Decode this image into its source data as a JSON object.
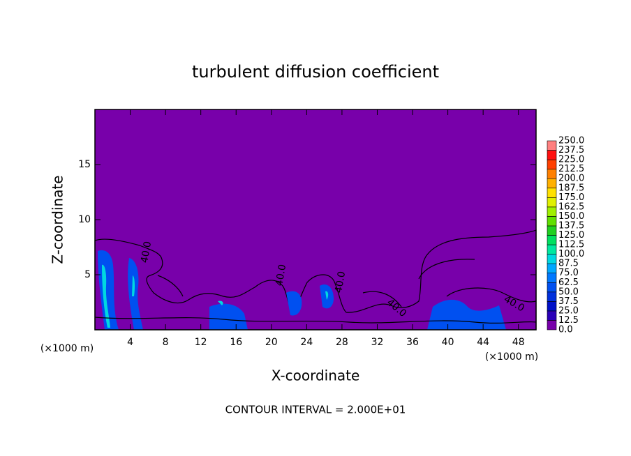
{
  "chart_data": {
    "type": "contour",
    "title": "turbulent diffusion coefficient",
    "x_label": "X-coordinate",
    "y_label": "Z-coordinate",
    "x_unit": "(×1000 m)",
    "y_unit": "(×1000 m)",
    "footer": "CONTOUR INTERVAL = 2.000E+01",
    "contour_labels": [
      "40.0",
      "40.0",
      "40.0",
      "40.0",
      "40.0"
    ],
    "xlim": [
      0,
      50
    ],
    "ylim": [
      0,
      20
    ],
    "xticks": [
      4,
      8,
      12,
      16,
      20,
      24,
      28,
      32,
      36,
      40,
      44,
      48
    ],
    "yticks": [
      5,
      10,
      15
    ],
    "colorbar": {
      "levels": [
        {
          "value": 0,
          "label": "0.0"
        },
        {
          "value": 12.5,
          "label": "12.5"
        },
        {
          "value": 25,
          "label": "25.0"
        },
        {
          "value": 37.5,
          "label": "37.5"
        },
        {
          "value": 50,
          "label": "50.0"
        },
        {
          "value": 62.5,
          "label": "62.5"
        },
        {
          "value": 75,
          "label": "75.0"
        },
        {
          "value": 87.5,
          "label": "87.5"
        },
        {
          "value": 100,
          "label": "100.0"
        },
        {
          "value": 112.5,
          "label": "112.5"
        },
        {
          "value": 125,
          "label": "125.0"
        },
        {
          "value": 137.5,
          "label": "137.5"
        },
        {
          "value": 150,
          "label": "150.0"
        },
        {
          "value": 162.5,
          "label": "162.5"
        },
        {
          "value": 175,
          "label": "175.0"
        },
        {
          "value": 187.5,
          "label": "187.5"
        },
        {
          "value": 200,
          "label": "200.0"
        },
        {
          "value": 212.5,
          "label": "212.5"
        },
        {
          "value": 225,
          "label": "225.0"
        },
        {
          "value": 237.5,
          "label": "237.5"
        },
        {
          "value": 250,
          "label": "250.0"
        }
      ],
      "colors": [
        "#7800aa",
        "#2a00b8",
        "#0010c8",
        "#0030dc",
        "#0050f0",
        "#0078ff",
        "#00a8ff",
        "#00d8e0",
        "#00e8a0",
        "#00e060",
        "#20d020",
        "#60e000",
        "#a0f000",
        "#e0f000",
        "#ffe000",
        "#ffb000",
        "#ff8000",
        "#ff4000",
        "#ff1010",
        "#ff8080"
      ]
    }
  }
}
